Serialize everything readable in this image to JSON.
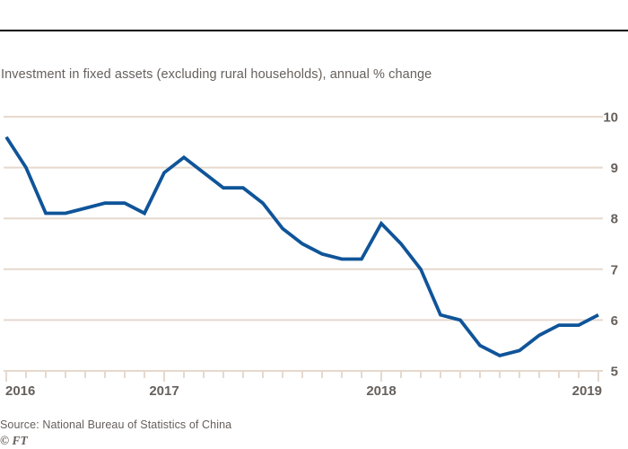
{
  "header": {
    "title": "Investment in fixed assets (excluding rural households), annual % change"
  },
  "chart_data": {
    "type": "line",
    "title": "Investment in fixed assets (excluding rural households), annual % change",
    "x": [
      "May 2016",
      "Jun 2016",
      "Jul 2016",
      "Aug 2016",
      "Sep 2016",
      "Oct 2016",
      "Nov 2016",
      "Dec 2016",
      "Feb 2017",
      "Mar 2017",
      "Apr 2017",
      "May 2017",
      "Jun 2017",
      "Jul 2017",
      "Aug 2017",
      "Sep 2017",
      "Oct 2017",
      "Nov 2017",
      "Dec 2017",
      "Feb 2018",
      "Mar 2018",
      "Apr 2018",
      "May 2018",
      "Jun 2018",
      "Jul 2018",
      "Aug 2018",
      "Sep 2018",
      "Oct 2018",
      "Nov 2018",
      "Dec 2018",
      "Feb 2019"
    ],
    "values": [
      9.6,
      9.0,
      8.1,
      8.1,
      8.2,
      8.3,
      8.3,
      8.1,
      8.9,
      9.2,
      8.9,
      8.6,
      8.6,
      8.3,
      7.8,
      7.5,
      7.3,
      7.2,
      7.2,
      7.9,
      7.5,
      7.0,
      6.1,
      6.0,
      5.5,
      5.3,
      5.4,
      5.7,
      5.9,
      5.9,
      6.1
    ],
    "xlabel": "",
    "ylabel": "",
    "ylim": [
      5,
      10
    ],
    "yticks": [
      10,
      9,
      8,
      7,
      6,
      5
    ],
    "ytick_labels": [
      "10",
      "9",
      "8",
      "7",
      "6",
      "5"
    ],
    "year_ticks": [
      {
        "label": "2016",
        "index": 0,
        "anchor": "start"
      },
      {
        "label": "2017",
        "index": 8,
        "anchor": "middle"
      },
      {
        "label": "2018",
        "index": 19,
        "anchor": "middle"
      },
      {
        "label": "2019",
        "index": 30,
        "anchor": "end"
      }
    ],
    "grid": true,
    "legend": false,
    "colors": {
      "line": "#0f5499",
      "grid": "#e6d9ce",
      "axis": "#e6d9ce",
      "tick_label": "#66605c",
      "title_text": "#66605c",
      "top_rule": "#000000",
      "background": "#ffffff"
    }
  },
  "footer": {
    "source": "Source: National Bureau of Statistics of China",
    "credit": "© FT"
  }
}
